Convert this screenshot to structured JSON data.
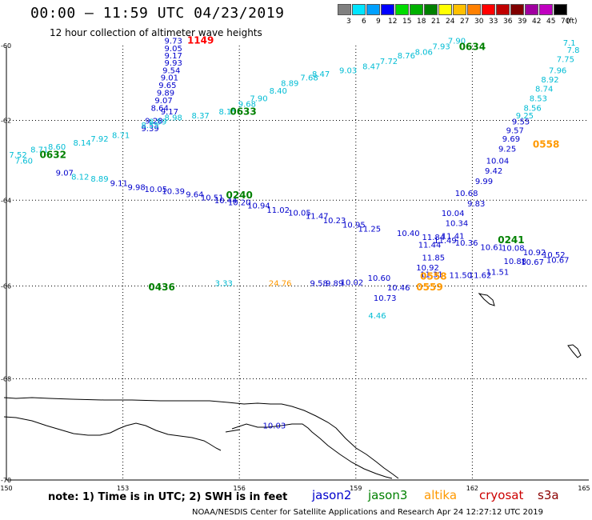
{
  "header": {
    "title": "00:00 — 11:59 UTC 04/23/2019",
    "subtitle": "12 hour collection of altimeter wave heights"
  },
  "color_scale": {
    "labels": [
      "3",
      "6",
      "9",
      "12",
      "15",
      "18",
      "21",
      "24",
      "27",
      "30",
      "33",
      "36",
      "39",
      "42",
      "45",
      "70"
    ],
    "colors": [
      "#808080",
      "#00e5ff",
      "#00a0ff",
      "#0000ff",
      "#00dd00",
      "#00b000",
      "#008000",
      "#ffff00",
      "#ffc000",
      "#ff8000",
      "#ff0000",
      "#c00000",
      "#800000",
      "#a000a0",
      "#c000c0",
      "#000000"
    ],
    "unit": "(ft)"
  },
  "axes": {
    "lat_labels": [
      "-60",
      "-62",
      "-64",
      "-66",
      "-68",
      "-70"
    ],
    "lon_labels": [
      "150",
      "153",
      "156",
      "159",
      "162",
      "165"
    ],
    "lon_range": [
      150,
      165
    ],
    "lat_range": [
      -60,
      -70
    ]
  },
  "satellites": [
    {
      "name": "jason2",
      "color": "#0000cc"
    },
    {
      "name": "jason3",
      "color": "#008000"
    },
    {
      "name": "altika",
      "color": "#ff9900"
    },
    {
      "name": "cryosat",
      "color": "#cc0000"
    },
    {
      "name": "s3a",
      "color": "#8b0000"
    }
  ],
  "notes": {
    "note": "note:  1) Time is in UTC;  2) SWH is in feet",
    "credit": "NOAA/NESDIS Center for Satellite Applications and Research     Apr 24 12:27:12 UTC 2019"
  },
  "time_labels": [
    {
      "text": "1149",
      "color": "#ff0000",
      "lon": 155.0,
      "lat": -59.95
    },
    {
      "text": "0634",
      "color": "#008000",
      "lon": 162.0,
      "lat": -60.12
    },
    {
      "text": "0633",
      "color": "#008000",
      "lon": 156.1,
      "lat": -61.86
    },
    {
      "text": "0632",
      "color": "#008000",
      "lon": 151.2,
      "lat": -62.96
    },
    {
      "text": "0240",
      "color": "#008000",
      "lon": 156.0,
      "lat": -63.96
    },
    {
      "text": "0241",
      "color": "#008000",
      "lon": 163.0,
      "lat": -65.02
    },
    {
      "text": "0558",
      "color": "#ff9900",
      "lon": 163.9,
      "lat": -62.7
    },
    {
      "text": "0558",
      "color": "#ff9900",
      "lon": 161.0,
      "lat": -65.86
    },
    {
      "text": "0559",
      "color": "#ff9900",
      "lon": 160.9,
      "lat": -66.1
    },
    {
      "text": "0436",
      "color": "#008000",
      "lon": 154.0,
      "lat": -66.1
    }
  ],
  "tracks": [
    {
      "sat": "jason2",
      "color": "#0000cc",
      "points": [
        [
          "9.73",
          154.3,
          -59.95
        ],
        [
          "9.05",
          154.3,
          -60.15
        ],
        [
          "9.17",
          154.3,
          -60.35
        ],
        [
          "9.93",
          154.3,
          -60.55
        ],
        [
          "9.54",
          154.25,
          -60.75
        ],
        [
          "9.01",
          154.2,
          -60.95
        ],
        [
          "9.65",
          154.15,
          -61.15
        ],
        [
          "9.89",
          154.1,
          -61.35
        ],
        [
          "9.07",
          154.05,
          -61.55
        ],
        [
          "8.64",
          153.95,
          -61.75
        ],
        [
          "9.17",
          154.2,
          -61.85
        ],
        [
          "9.28",
          153.8,
          -62.08
        ],
        [
          "9.39",
          153.7,
          -62.28
        ],
        [
          "9.11",
          152.9,
          -63.65
        ],
        [
          "9.98",
          153.35,
          -63.75
        ],
        [
          "10.05",
          153.85,
          -63.8
        ],
        [
          "10.39",
          154.3,
          -63.85
        ],
        [
          "9.64",
          154.85,
          -63.93
        ],
        [
          "10.51",
          155.3,
          -64.0
        ],
        [
          "10.44",
          155.65,
          -64.07
        ],
        [
          "10.20",
          156.0,
          -64.12
        ],
        [
          "10.94",
          156.5,
          -64.2
        ],
        [
          "11.02",
          157.0,
          -64.3
        ],
        [
          "10.05",
          157.55,
          -64.37
        ],
        [
          "11.47",
          158.0,
          -64.45
        ],
        [
          "10.23",
          158.45,
          -64.55
        ],
        [
          "10.95",
          158.95,
          -64.65
        ],
        [
          "11.25",
          159.35,
          -64.75
        ],
        [
          "10.40",
          160.35,
          -64.85
        ],
        [
          "11.84",
          161.0,
          -64.95
        ],
        [
          "11.41",
          161.5,
          -64.92
        ],
        [
          "11.44",
          160.9,
          -65.12
        ],
        [
          "11.49",
          161.3,
          -65.02
        ],
        [
          "10.36",
          161.85,
          -65.08
        ],
        [
          "10.61",
          162.5,
          -65.18
        ],
        [
          "10.08",
          163.05,
          -65.2
        ],
        [
          "10.92",
          163.6,
          -65.3
        ],
        [
          "10.52",
          164.1,
          -65.35
        ],
        [
          "10.88",
          163.1,
          -65.5
        ],
        [
          "10.67",
          163.55,
          -65.52
        ],
        [
          "10.67",
          164.2,
          -65.47
        ],
        [
          "11.85",
          161.0,
          -65.42
        ],
        [
          "10.92",
          160.85,
          -65.65
        ],
        [
          "11.31",
          160.95,
          -65.8
        ],
        [
          "10.60",
          159.6,
          -65.88
        ],
        [
          "10.46",
          160.1,
          -66.1
        ],
        [
          "10.73",
          159.75,
          -66.33
        ],
        [
          "11.62",
          162.2,
          -65.82
        ],
        [
          "11.51",
          162.65,
          -65.75
        ],
        [
          "11.50",
          161.7,
          -65.82
        ],
        [
          "10.34",
          161.6,
          -64.62
        ],
        [
          "10.04",
          161.5,
          -64.38
        ],
        [
          "10.68",
          161.85,
          -63.9
        ],
        [
          "9.83",
          162.1,
          -64.15
        ],
        [
          "9.99",
          162.3,
          -63.6
        ],
        [
          "9.42",
          162.55,
          -63.35
        ],
        [
          "10.04",
          162.65,
          -63.1
        ],
        [
          "9.25",
          162.9,
          -62.8
        ],
        [
          "9.69",
          163.0,
          -62.55
        ],
        [
          "9.57",
          163.1,
          -62.33
        ],
        [
          "9.55",
          163.25,
          -62.1
        ],
        [
          "9.07",
          151.5,
          -63.4
        ],
        [
          "9.58",
          158.05,
          -66.0
        ],
        [
          "9.89",
          158.45,
          -66.0
        ],
        [
          "10.02",
          158.9,
          -65.98
        ],
        [
          "10.03",
          156.9,
          -69.0
        ]
      ]
    },
    {
      "sat": "jason3",
      "color": "#00bcd4",
      "points": [
        [
          "7.90",
          161.6,
          -59.95
        ],
        [
          "7.93",
          161.2,
          -60.1
        ],
        [
          "8.06",
          160.75,
          -60.25
        ],
        [
          "8.76",
          160.3,
          -60.35
        ],
        [
          "7.72",
          159.85,
          -60.5
        ],
        [
          "8.47",
          159.4,
          -60.65
        ],
        [
          "9.03",
          158.8,
          -60.75
        ],
        [
          "8.47",
          158.1,
          -60.85
        ],
        [
          "7.68",
          157.8,
          -60.95
        ],
        [
          "8.89",
          157.3,
          -61.1
        ],
        [
          "8.40",
          157.0,
          -61.3
        ],
        [
          "7.90",
          156.5,
          -61.5
        ],
        [
          "9.68",
          156.2,
          -61.65
        ],
        [
          "8.15",
          155.7,
          -61.85
        ],
        [
          "8.37",
          155.0,
          -61.95
        ],
        [
          "8.98",
          154.3,
          -62.0
        ],
        [
          "8.59",
          153.9,
          -62.1
        ],
        [
          "8.55",
          153.7,
          -62.2
        ],
        [
          "8.71",
          152.95,
          -62.45
        ],
        [
          "7.92",
          152.4,
          -62.55
        ],
        [
          "8.14",
          151.95,
          -62.65
        ],
        [
          "8.60",
          151.3,
          -62.75
        ],
        [
          "8.71",
          150.85,
          -62.82
        ],
        [
          "7.52",
          150.3,
          -62.95
        ],
        [
          "7.60",
          150.45,
          -63.1
        ],
        [
          "8.12",
          151.9,
          -63.5
        ],
        [
          "8.89",
          152.4,
          -63.55
        ],
        [
          "7.1",
          164.5,
          -60.0
        ],
        [
          "7.8",
          164.6,
          -60.2
        ],
        [
          "7.75",
          164.4,
          -60.45
        ],
        [
          "7.96",
          164.2,
          -60.75
        ],
        [
          "8.92",
          164.0,
          -61.0
        ],
        [
          "8.74",
          163.85,
          -61.25
        ],
        [
          "8.53",
          163.7,
          -61.5
        ],
        [
          "8.56",
          163.55,
          -61.75
        ],
        [
          "9.25",
          163.35,
          -61.95
        ],
        [
          "3.33",
          155.6,
          -66.0
        ],
        [
          "4.46",
          159.55,
          -66.72
        ]
      ]
    },
    {
      "sat": "altika",
      "color": "#ff9900",
      "points": [
        [
          "24.76",
          157.05,
          -66.0
        ]
      ]
    }
  ]
}
